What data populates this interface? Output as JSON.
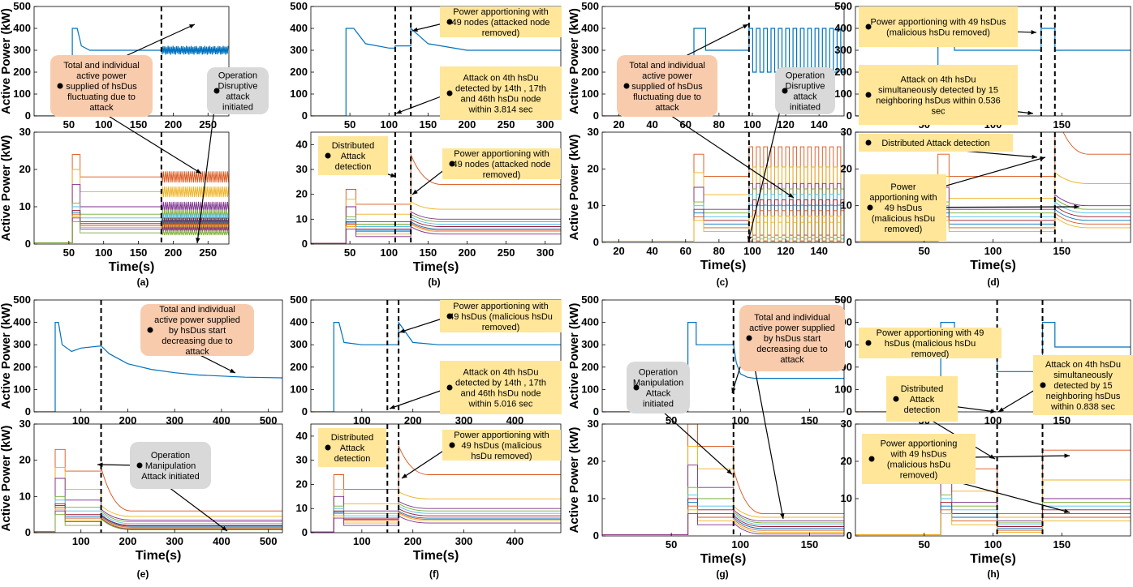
{
  "figure": {
    "subplot_labels": [
      "(a)",
      "(b)",
      "(c)",
      "(d)",
      "(e)",
      "(f)",
      "(g)",
      "(h)"
    ]
  },
  "chart_data": [
    {
      "id": "a-top",
      "type": "line",
      "xlabel": "",
      "ylabel": "Active Power (kW)",
      "xlim": [
        0,
        280
      ],
      "ylim": [
        0,
        500
      ],
      "xticks": [
        50,
        100,
        150,
        200,
        250
      ],
      "yticks": [
        0,
        100,
        200,
        300,
        400,
        500
      ],
      "event_lines_x": [
        183
      ],
      "series": [
        {
          "values_x": [
            0,
            55,
            55,
            62,
            68,
            80,
            100,
            140,
            183,
            183,
            280
          ],
          "values_y": [
            0,
            0,
            400,
            400,
            320,
            300,
            300,
            300,
            300,
            310,
            300
          ],
          "oscillation": {
            "from_x": 183,
            "amplitude": 20
          }
        }
      ],
      "annotations": [
        {
          "text": "Total and individual active power supplied of hsDus fluctuating due to attack",
          "style": "salmon"
        },
        {
          "text": "Operation Disruptive attack initiated",
          "style": "gray"
        }
      ]
    },
    {
      "id": "a-bottom",
      "type": "line",
      "xlabel": "Time(s)",
      "ylabel": "Active Power (kW)",
      "xlim": [
        0,
        280
      ],
      "ylim": [
        0,
        30
      ],
      "xticks": [
        50,
        100,
        150,
        200,
        250
      ],
      "yticks": [
        0,
        10,
        20,
        30
      ],
      "event_lines_x": [
        183
      ],
      "series_levels": [
        18,
        14,
        10,
        8,
        7,
        6,
        5.5,
        5,
        4.5,
        4,
        3
      ],
      "series_start_x": 55,
      "oscillation": {
        "from_x": 183,
        "amplitude": 1.5
      }
    },
    {
      "id": "b-top",
      "type": "line",
      "xlabel": "",
      "ylabel": "",
      "xlim": [
        0,
        320
      ],
      "ylim": [
        0,
        500
      ],
      "xticks": [
        50,
        100,
        150,
        200,
        250,
        300
      ],
      "yticks": [
        0,
        100,
        200,
        300,
        400,
        500
      ],
      "event_lines_x": [
        108,
        128
      ],
      "series": [
        {
          "values_x": [
            0,
            45,
            45,
            55,
            70,
            100,
            108,
            108,
            128,
            128,
            150,
            200,
            320
          ],
          "values_y": [
            0,
            0,
            400,
            400,
            330,
            310,
            310,
            320,
            320,
            400,
            330,
            300,
            300
          ]
        }
      ],
      "annotations": [
        {
          "text": "Power apportioning with 49 nodes (attacked node removed)",
          "style": "yellow"
        },
        {
          "text": "Attack on 4th hsDu detected by 14th , 17th and 46th hsDu node within 3.814 sec",
          "style": "yellow"
        }
      ]
    },
    {
      "id": "b-bottom",
      "type": "line",
      "xlabel": "Time(s)",
      "ylabel": "",
      "xlim": [
        0,
        320
      ],
      "ylim": [
        0,
        45
      ],
      "xticks": [
        50,
        100,
        150,
        200,
        250,
        300
      ],
      "yticks": [
        0,
        10,
        20,
        30,
        40
      ],
      "event_lines_x": [
        108,
        128
      ],
      "series_levels": [
        16,
        12,
        9,
        8,
        7,
        6,
        5.5,
        5,
        4,
        3
      ],
      "series_start_x": 45,
      "post_event_levels": [
        24,
        14,
        10,
        9,
        8,
        7,
        6,
        5.5,
        5,
        4
      ],
      "annotations": [
        {
          "text": "Distributed Attack detection",
          "style": "yellow"
        },
        {
          "text": "Power apportioning with 49 nodes (attacked node removed)",
          "style": "yellow"
        }
      ]
    },
    {
      "id": "c-top",
      "type": "line",
      "xlabel": "",
      "ylabel": "Active Power (kW)",
      "xlim": [
        10,
        155
      ],
      "ylim": [
        0,
        500
      ],
      "xticks": [
        20,
        40,
        60,
        80,
        100,
        120,
        140
      ],
      "yticks": [
        0,
        100,
        200,
        300,
        400,
        500
      ],
      "event_lines_x": [
        98
      ],
      "series": [
        {
          "values_x": [
            10,
            65,
            65,
            72,
            72,
            98,
            98,
            155
          ],
          "values_y": [
            0,
            0,
            400,
            400,
            300,
            300,
            300,
            300
          ],
          "oscillation": {
            "from_x": 98,
            "amplitude": 100,
            "square": true
          }
        }
      ],
      "annotations": [
        {
          "text": "Total and individual active power supplied of hsDus fluctuating due to attack",
          "style": "salmon"
        },
        {
          "text": "Operation Disruptive attack initiated",
          "style": "gray"
        }
      ]
    },
    {
      "id": "c-bottom",
      "type": "line",
      "xlabel": "Time(s)",
      "ylabel": "Active Power (kW)",
      "xlim": [
        10,
        155
      ],
      "ylim": [
        0,
        30
      ],
      "xticks": [
        20,
        40,
        60,
        80,
        100,
        120,
        140
      ],
      "yticks": [
        0,
        10,
        20,
        30
      ],
      "event_lines_x": [
        98
      ],
      "series_levels": [
        18,
        13,
        9,
        8,
        7,
        6,
        5,
        4,
        3
      ],
      "series_start_x": 65,
      "oscillation": {
        "from_x": 98,
        "amplitude": 8,
        "square": true
      }
    },
    {
      "id": "d-top",
      "type": "line",
      "xlabel": "",
      "ylabel": "",
      "xlim": [
        0,
        200
      ],
      "ylim": [
        0,
        500
      ],
      "xticks": [
        50,
        100,
        150
      ],
      "yticks": [
        0,
        100,
        200,
        300,
        400,
        500
      ],
      "event_lines_x": [
        135,
        145
      ],
      "series": [
        {
          "values_x": [
            0,
            60,
            60,
            72,
            72,
            135,
            135,
            145,
            145,
            200
          ],
          "values_y": [
            0,
            0,
            400,
            400,
            300,
            300,
            400,
            400,
            300,
            300
          ]
        }
      ],
      "annotations": [
        {
          "text": "Power apportioning with 49 hsDus (malicious hsDu removed)",
          "style": "yellow"
        },
        {
          "text": "Attack on 4th hsDu simultaneously detected by 15 neighboring hsDus within 0.536 sec",
          "style": "yellow"
        }
      ]
    },
    {
      "id": "d-bottom",
      "type": "line",
      "xlabel": "Time(s)",
      "ylabel": "",
      "xlim": [
        0,
        200
      ],
      "ylim": [
        0,
        30
      ],
      "xticks": [
        50,
        100,
        150
      ],
      "yticks": [
        0,
        10,
        20,
        30
      ],
      "event_lines_x": [
        135,
        145
      ],
      "series_levels": [
        18,
        12,
        9,
        8,
        7,
        6,
        5,
        4,
        3
      ],
      "series_start_x": 60,
      "post_event_levels": [
        24,
        16,
        10,
        9,
        8,
        7,
        6,
        5,
        4
      ],
      "annotations": [
        {
          "text": "Distributed Attack detection",
          "style": "yellow"
        },
        {
          "text": "Power apportioning with 49 hsDus (malicious hsDu removed)",
          "style": "yellow"
        }
      ]
    },
    {
      "id": "e-top",
      "type": "line",
      "xlabel": "",
      "ylabel": "Active Power (kW)",
      "xlim": [
        0,
        530
      ],
      "ylim": [
        0,
        500
      ],
      "xticks": [
        100,
        200,
        300,
        400,
        500
      ],
      "yticks": [
        0,
        100,
        200,
        300,
        400,
        500
      ],
      "event_lines_x": [
        143
      ],
      "series": [
        {
          "values_x": [
            0,
            45,
            45,
            52,
            60,
            80,
            100,
            143,
            160,
            200,
            250,
            300,
            350,
            400,
            450,
            530
          ],
          "values_y": [
            0,
            0,
            400,
            400,
            300,
            270,
            285,
            295,
            260,
            215,
            190,
            175,
            165,
            160,
            155,
            152
          ]
        }
      ],
      "annotations": [
        {
          "text": "Total and individual active power supplied by hsDus start decreasing due to attack",
          "style": "salmon"
        }
      ]
    },
    {
      "id": "e-bottom",
      "type": "line",
      "xlabel": "Time(s)",
      "ylabel": "Active Power (kW)",
      "xlim": [
        0,
        530
      ],
      "ylim": [
        0,
        30
      ],
      "xticks": [
        100,
        200,
        300,
        400,
        500
      ],
      "yticks": [
        0,
        10,
        20,
        30
      ],
      "event_lines_x": [
        143
      ],
      "series_levels": [
        17,
        12,
        9,
        7,
        6,
        5,
        4.5,
        4,
        3.5,
        3,
        2
      ],
      "series_start_x": 45,
      "post_event_levels": [
        6,
        4.5,
        3.5,
        3,
        2.5,
        2,
        1.8,
        1.5,
        1.2,
        1,
        0.8
      ],
      "annotations": [
        {
          "text": "Operation Manipulation Attack initiated",
          "style": "gray"
        }
      ]
    },
    {
      "id": "f-top",
      "type": "line",
      "xlabel": "",
      "ylabel": "",
      "xlim": [
        0,
        490
      ],
      "ylim": [
        0,
        500
      ],
      "xticks": [
        100,
        200,
        300,
        400
      ],
      "yticks": [
        0,
        100,
        200,
        300,
        400,
        500
      ],
      "event_lines_x": [
        150,
        172
      ],
      "series": [
        {
          "values_x": [
            0,
            45,
            45,
            55,
            65,
            100,
            150,
            150,
            172,
            172,
            200,
            250,
            490
          ],
          "values_y": [
            0,
            0,
            400,
            400,
            310,
            300,
            300,
            300,
            300,
            400,
            310,
            300,
            300
          ]
        }
      ],
      "annotations": [
        {
          "text": "Power apportioning with 49 hsDus (malicious hsDu removed)",
          "style": "yellow"
        },
        {
          "text": "Attack on 4th hsDu detected by 14th , 17th and 46th hsDu node within 5.016 sec",
          "style": "yellow"
        }
      ]
    },
    {
      "id": "f-bottom",
      "type": "line",
      "xlabel": "Time(s)",
      "ylabel": "",
      "xlim": [
        0,
        490
      ],
      "ylim": [
        0,
        45
      ],
      "xticks": [
        100,
        200,
        300,
        400
      ],
      "yticks": [
        0,
        10,
        20,
        30,
        40
      ],
      "event_lines_x": [
        150,
        172
      ],
      "series_levels": [
        18,
        12,
        9,
        8,
        7,
        6,
        5.5,
        5,
        4,
        3
      ],
      "series_start_x": 45,
      "post_event_levels": [
        24,
        14,
        10,
        9,
        8,
        7,
        6,
        5.5,
        5,
        4
      ],
      "annotations": [
        {
          "text": "Distributed Attack detection",
          "style": "yellow"
        },
        {
          "text": "Power apportioning with 49 hsDus (malicious hsDu removed)",
          "style": "yellow"
        }
      ]
    },
    {
      "id": "g-top",
      "type": "line",
      "xlabel": "",
      "ylabel": "Active Power (kW)",
      "xlim": [
        0,
        175
      ],
      "ylim": [
        0,
        500
      ],
      "xticks": [
        50,
        100,
        150
      ],
      "yticks": [
        0,
        100,
        200,
        300,
        400,
        500
      ],
      "event_lines_x": [
        95
      ],
      "series": [
        {
          "values_x": [
            0,
            62,
            62,
            68,
            68,
            95,
            97,
            100,
            105,
            110,
            175
          ],
          "values_y": [
            0,
            0,
            400,
            400,
            300,
            300,
            220,
            170,
            155,
            150,
            150
          ]
        }
      ],
      "annotations": [
        {
          "text": "Total and individual active power supplied by hsDus start decreasing due to attack",
          "style": "salmon"
        },
        {
          "text": "Operation Manipulation Attack initiated",
          "style": "gray"
        }
      ]
    },
    {
      "id": "g-bottom",
      "type": "line",
      "xlabel": "Time(s)",
      "ylabel": "Active Power (kW)",
      "xlim": [
        0,
        175
      ],
      "ylim": [
        0,
        30
      ],
      "xticks": [
        50,
        100,
        150
      ],
      "yticks": [
        0,
        10,
        20,
        30
      ],
      "event_lines_x": [
        95
      ],
      "series_levels": [
        24,
        18,
        13,
        10,
        8,
        7,
        6,
        5,
        4,
        3
      ],
      "series_start_x": 62,
      "post_event_levels": [
        6,
        5,
        4,
        3.5,
        3,
        2.5,
        2,
        1.5,
        1,
        0.5
      ]
    },
    {
      "id": "h-top",
      "type": "line",
      "xlabel": "",
      "ylabel": "",
      "xlim": [
        0,
        200
      ],
      "ylim": [
        0,
        500
      ],
      "xticks": [
        50,
        100,
        150
      ],
      "yticks": [
        0,
        100,
        200,
        300,
        400,
        500
      ],
      "event_lines_x": [
        103,
        136
      ],
      "series": [
        {
          "values_x": [
            0,
            62,
            62,
            72,
            72,
            103,
            103,
            136,
            136,
            145,
            145,
            200
          ],
          "values_y": [
            0,
            0,
            400,
            400,
            300,
            300,
            180,
            180,
            400,
            400,
            290,
            290
          ]
        }
      ],
      "annotations": [
        {
          "text": "Power apportioning with 49 hsDus (malicious hsDu removed)",
          "style": "yellow"
        },
        {
          "text": "Distributed Attack detection",
          "style": "yellow"
        },
        {
          "text": "Attack on 4th hsDu simultaneously detected by 15 neighboring hsDus within 0.838 sec",
          "style": "yellow"
        }
      ]
    },
    {
      "id": "h-bottom",
      "type": "line",
      "xlabel": "Time(s)",
      "ylabel": "",
      "xlim": [
        0,
        200
      ],
      "ylim": [
        0,
        30
      ],
      "xticks": [
        50,
        100,
        150
      ],
      "yticks": [
        0,
        10,
        20,
        30
      ],
      "event_lines_x": [
        103,
        136
      ],
      "series_levels": [
        18,
        12,
        9,
        8,
        7,
        6,
        5,
        4,
        3
      ],
      "series_start_x": 62,
      "mid_levels": [
        6,
        5,
        4,
        3.5,
        3,
        2.5,
        2,
        1.5,
        1
      ],
      "post_event_levels": [
        23,
        15,
        10,
        9,
        8,
        7,
        6,
        5,
        4
      ],
      "annotations": [
        {
          "text": "Power apportioning with 49 hsDus (malicious hsDu removed)",
          "style": "yellow"
        }
      ]
    }
  ],
  "palette": [
    "#0072BD",
    "#D95319",
    "#EDB120",
    "#7E2F8E",
    "#77AC30",
    "#4DBEEE",
    "#A2142F"
  ]
}
